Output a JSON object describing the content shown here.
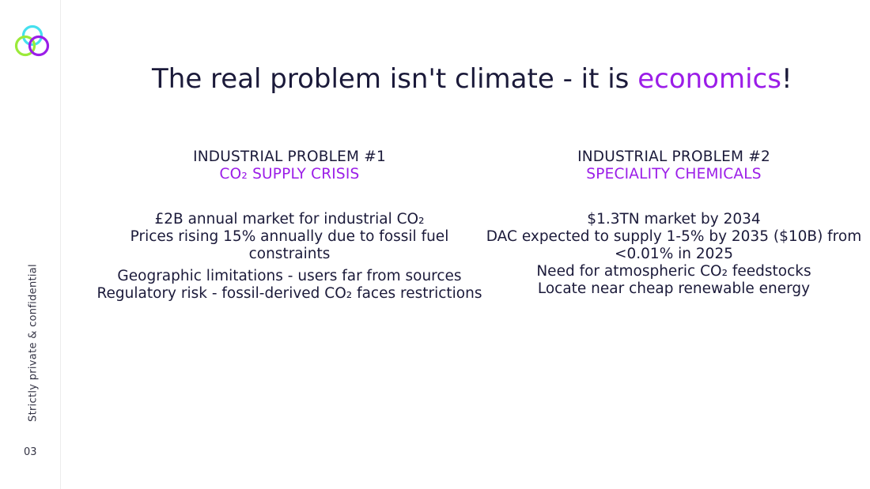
{
  "sidebar": {
    "vertical_label": "Strictly private & confidential",
    "page_number": "03",
    "logo_icon": "three-overlapping-circles-logo",
    "logo_colors": [
      "#45e0ee",
      "#9bea3a",
      "#9b1de8"
    ]
  },
  "title": {
    "prefix": "The real problem isn't climate - it is ",
    "highlight": "economics",
    "suffix": "!"
  },
  "colors": {
    "accent": "#9b1de8",
    "text": "#1b1a3a"
  },
  "problems": [
    {
      "heading": "INDUSTRIAL PROBLEM #1",
      "subheading": "CO₂ SUPPLY CRISIS",
      "items": [
        "£2B annual market for industrial CO₂",
        "Prices rising 15% annually due to fossil fuel constraints",
        "Geographic limitations - users far from sources",
        "Regulatory risk - fossil-derived CO₂ faces restrictions"
      ]
    },
    {
      "heading": "INDUSTRIAL PROBLEM #2",
      "subheading": "SPECIALITY CHEMICALS",
      "items": [
        "$1.3TN market by 2034",
        "DAC expected to supply 1-5% by 2035 ($10B) from <0.01% in 2025",
        "Need for atmospheric CO₂ feedstocks",
        "Locate near cheap renewable energy"
      ]
    }
  ]
}
